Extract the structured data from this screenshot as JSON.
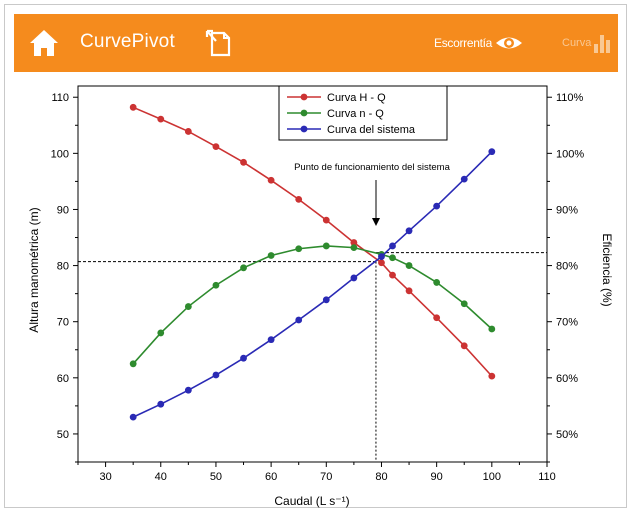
{
  "header": {
    "app_title": "CurvePivot",
    "escorrentia_label": "Escorrentía",
    "curva_label": "Curva",
    "accent_color": "#f58b1d",
    "icons": [
      "home-icon",
      "document-icon",
      "eye-icon",
      "bar-chart-icon"
    ]
  },
  "chart_data": {
    "type": "line",
    "title": "",
    "xlabel": "Caudal (L s⁻¹)",
    "ylabel_left": "Altura manométrica (m)",
    "ylabel_right": "Eficiencia (%)",
    "xlim": [
      25,
      110
    ],
    "ylim_left": [
      45,
      112
    ],
    "ylim_right": [
      45,
      112
    ],
    "x_ticks": [
      30,
      40,
      50,
      60,
      70,
      80,
      90,
      100,
      110
    ],
    "y_ticks_left": [
      50,
      60,
      70,
      80,
      90,
      100,
      110
    ],
    "y_ticks_right": [
      "50%",
      "60%",
      "70%",
      "80%",
      "90%",
      "100%",
      "110%"
    ],
    "legend_position": "top-center",
    "grid": false,
    "series": [
      {
        "name": "Curva H - Q",
        "color": "#cc3333",
        "x": [
          35,
          40,
          45,
          50,
          55,
          60,
          65,
          70,
          75,
          80,
          82,
          85,
          90,
          95,
          100
        ],
        "y": [
          108.2,
          106.1,
          103.9,
          101.2,
          98.4,
          95.2,
          91.8,
          88.1,
          84.1,
          80.5,
          78.3,
          75.5,
          70.7,
          65.7,
          60.3
        ]
      },
      {
        "name": "Curva n - Q",
        "color": "#2e8b2e",
        "x": [
          35,
          40,
          45,
          50,
          55,
          60,
          65,
          70,
          75,
          80,
          82,
          85,
          90,
          95,
          100
        ],
        "y": [
          62.5,
          68.0,
          72.7,
          76.5,
          79.6,
          81.8,
          83.0,
          83.5,
          83.2,
          82.0,
          81.4,
          80.0,
          77.0,
          73.2,
          68.7
        ]
      },
      {
        "name": "Curva del sistema",
        "color": "#2a2ab5",
        "x": [
          35,
          40,
          45,
          50,
          55,
          60,
          65,
          70,
          75,
          80,
          82,
          85,
          90,
          95,
          100
        ],
        "y": [
          53.0,
          55.3,
          57.8,
          60.5,
          63.5,
          66.8,
          70.3,
          73.9,
          77.8,
          81.6,
          83.5,
          86.2,
          90.6,
          95.4,
          100.3
        ]
      }
    ],
    "annotation": {
      "text": "Punto de funcionamiento del sistema",
      "operating_point_x": 79,
      "operating_head": 80.7,
      "operating_efficiency": 82.3
    }
  }
}
